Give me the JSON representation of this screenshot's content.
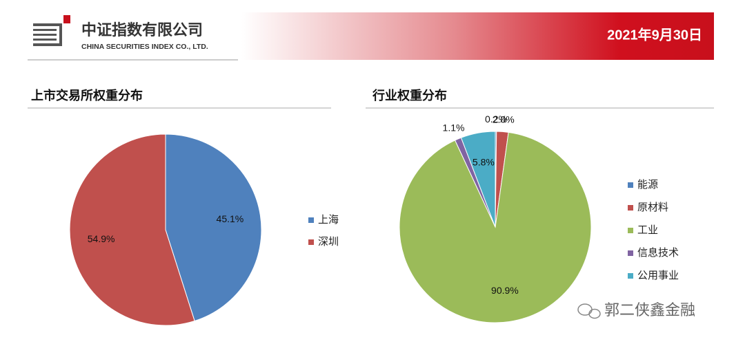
{
  "header": {
    "company": "中证指数有限公司",
    "company_en": "CHINA SECURITIES INDEX CO., LTD.",
    "date": "2021年9月30日"
  },
  "watermark": "郭二侠鑫金融",
  "chart_data": [
    {
      "type": "pie",
      "title": "上市交易所权重分布",
      "categories": [
        "上海",
        "深圳"
      ],
      "values": [
        45.1,
        54.9
      ],
      "value_labels": [
        "45.1%",
        "54.9%"
      ],
      "colors": [
        "#4f81bd",
        "#c0504d"
      ],
      "legend": "right"
    },
    {
      "type": "pie",
      "title": "行业权重分布",
      "categories": [
        "能源",
        "原材料",
        "工业",
        "信息技术",
        "公用事业"
      ],
      "values": [
        0.2,
        2.0,
        90.9,
        1.1,
        5.8
      ],
      "value_labels": [
        "0.2%",
        "2.0%",
        "90.9%",
        "1.1%",
        "5.8%"
      ],
      "colors": [
        "#4f81bd",
        "#c0504d",
        "#9bbb59",
        "#8064a2",
        "#4bacc6"
      ],
      "legend": "right"
    }
  ]
}
